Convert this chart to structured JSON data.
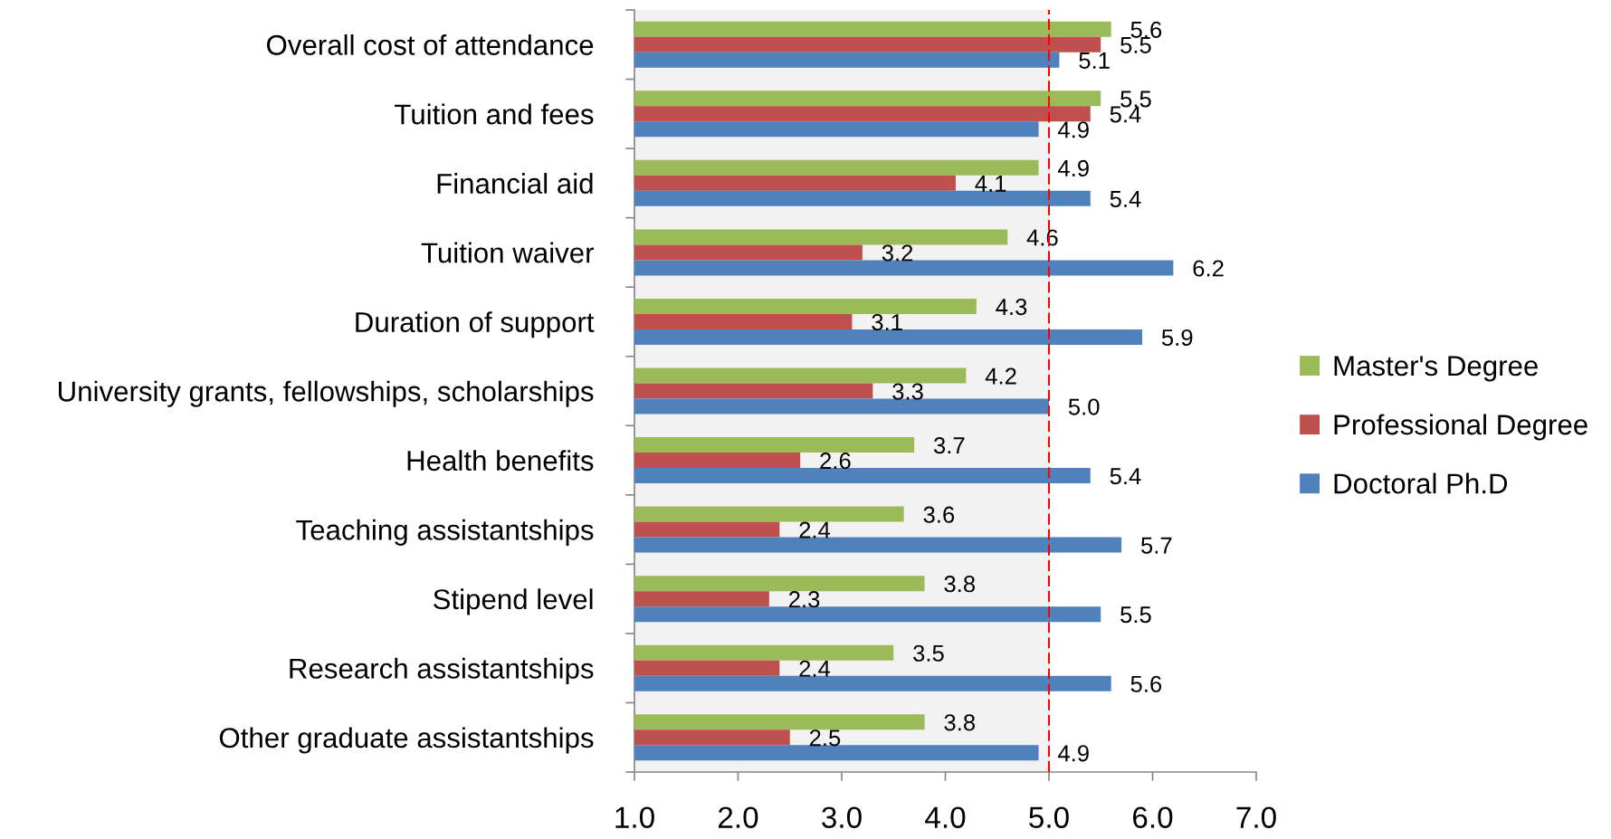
{
  "chart_data": {
    "type": "bar",
    "orientation": "horizontal",
    "categories": [
      "Overall cost of attendance",
      "Tuition and fees",
      "Financial aid",
      "Tuition waiver",
      "Duration of support",
      "University grants, fellowships, scholarships",
      "Health benefits",
      "Teaching assistantships",
      "Stipend level",
      "Research assistantships",
      "Other graduate assistantships"
    ],
    "series": [
      {
        "name": "Master's Degree",
        "color": "#9bbb59",
        "values": [
          5.6,
          5.5,
          4.9,
          4.6,
          4.3,
          4.2,
          3.7,
          3.6,
          3.8,
          3.5,
          3.8
        ],
        "value_labels": [
          "5.6",
          "5.5",
          "4.9",
          "4.6",
          "4.3",
          "4.2",
          "3.7",
          "3.6",
          "3.8",
          "3.5",
          "3.8"
        ]
      },
      {
        "name": "Professional Degree",
        "color": "#c0504d",
        "values": [
          5.5,
          5.4,
          4.1,
          3.2,
          3.1,
          3.3,
          2.6,
          2.4,
          2.3,
          2.4,
          2.5
        ],
        "value_labels": [
          "5.5",
          "5.4",
          "4.1",
          "3.2",
          "3.1",
          "3.3",
          "2.6",
          "2.4",
          "2.3",
          "2.4",
          "2.5"
        ]
      },
      {
        "name": "Doctoral Ph.D",
        "color": "#4f81bd",
        "values": [
          5.1,
          4.9,
          5.4,
          6.2,
          5.9,
          5.0,
          5.4,
          5.7,
          5.5,
          5.6,
          4.9
        ],
        "value_labels": [
          "5.1",
          "4.9",
          "5.4",
          "6.2",
          "5.9",
          "5.0",
          "5.4",
          "5.7",
          "5.5",
          "5.6",
          "4.9"
        ]
      }
    ],
    "xlim": [
      1,
      7
    ],
    "xticks": [
      {
        "value": 1,
        "label": "1.0"
      },
      {
        "value": 2,
        "label": "2.0"
      },
      {
        "value": 3,
        "label": "3.0"
      },
      {
        "value": 4,
        "label": "4.0"
      },
      {
        "value": 5,
        "label": "5.0"
      },
      {
        "value": 6,
        "label": "6.0"
      },
      {
        "value": 7,
        "label": "7.0"
      }
    ],
    "bands": [
      {
        "axis": "x",
        "from": 1,
        "to": 5,
        "color": "#f2f2f2"
      }
    ],
    "ref_lines": [
      {
        "axis": "x",
        "value": 5,
        "color": "#ff0000",
        "line_style": "dashed"
      }
    ],
    "legend": "right"
  }
}
